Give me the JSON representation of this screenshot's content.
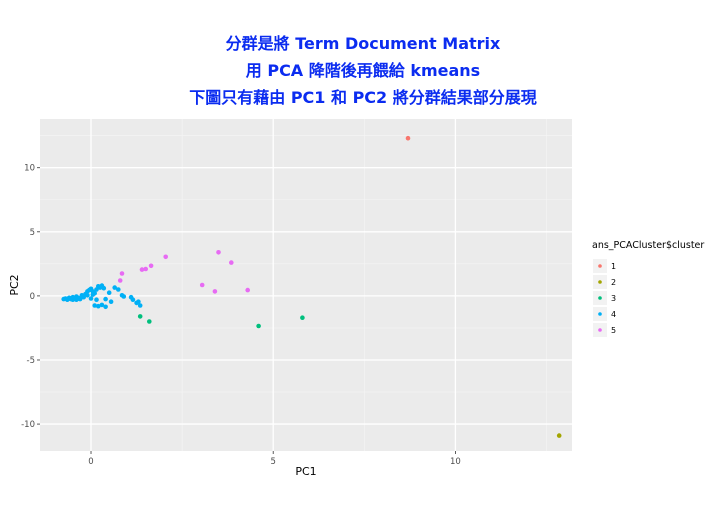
{
  "chart_data": {
    "type": "scatter",
    "title_lines": [
      "分群是將 Term Document Matrix",
      "用 PCA 降階後再餵給 kmeans",
      "下圖只有藉由 PC1 和 PC2 將分群結果部分展現"
    ],
    "xlabel": "PC1",
    "ylabel": "PC2",
    "xlim": [
      -1.4,
      13.2
    ],
    "ylim": [
      -12.1,
      13.8
    ],
    "x_ticks": [
      0,
      5,
      10
    ],
    "y_ticks": [
      -10,
      -5,
      0,
      5,
      10
    ],
    "grid": true,
    "legend": {
      "title": "ans_PCACluster$cluster",
      "placement": "right",
      "entries": [
        "1",
        "2",
        "3",
        "4",
        "5"
      ]
    },
    "colors": {
      "1": "#F8766D",
      "2": "#A3A500",
      "3": "#00BF7D",
      "4": "#00B0F6",
      "5": "#E76BF3"
    },
    "series": [
      {
        "name": "1",
        "points": [
          [
            8.7,
            12.3
          ]
        ]
      },
      {
        "name": "2",
        "points": [
          [
            12.85,
            -10.9
          ]
        ]
      },
      {
        "name": "3",
        "points": [
          [
            1.35,
            -1.6
          ],
          [
            1.6,
            -2.0
          ],
          [
            4.6,
            -2.35
          ],
          [
            5.8,
            -1.7
          ]
        ]
      },
      {
        "name": "4",
        "points": [
          [
            -0.75,
            -0.25
          ],
          [
            -0.7,
            -0.2
          ],
          [
            -0.65,
            -0.3
          ],
          [
            -0.6,
            -0.15
          ],
          [
            -0.55,
            -0.25
          ],
          [
            -0.5,
            -0.3
          ],
          [
            -0.5,
            -0.1
          ],
          [
            -0.45,
            -0.2
          ],
          [
            -0.4,
            -0.3
          ],
          [
            -0.4,
            -0.05
          ],
          [
            -0.35,
            -0.15
          ],
          [
            -0.3,
            -0.25
          ],
          [
            -0.25,
            0.05
          ],
          [
            -0.2,
            -0.1
          ],
          [
            -0.15,
            0.15
          ],
          [
            -0.1,
            0.35
          ],
          [
            -0.05,
            0.45
          ],
          [
            0.0,
            0.55
          ],
          [
            0.05,
            0.35
          ],
          [
            0.1,
            0.2
          ],
          [
            0.15,
            0.5
          ],
          [
            0.2,
            0.75
          ],
          [
            0.25,
            0.65
          ],
          [
            0.3,
            0.8
          ],
          [
            0.35,
            0.6
          ],
          [
            0.1,
            -0.75
          ],
          [
            0.2,
            -0.8
          ],
          [
            0.3,
            -0.7
          ],
          [
            0.4,
            -0.85
          ],
          [
            0.15,
            -0.3
          ],
          [
            0.4,
            -0.25
          ],
          [
            0.5,
            0.25
          ],
          [
            0.55,
            -0.45
          ],
          [
            0.65,
            0.65
          ],
          [
            0.75,
            0.5
          ],
          [
            0.85,
            0.05
          ],
          [
            0.9,
            -0.05
          ],
          [
            1.1,
            -0.1
          ],
          [
            1.15,
            -0.3
          ],
          [
            1.25,
            -0.55
          ],
          [
            1.3,
            -0.45
          ],
          [
            1.35,
            -0.75
          ],
          [
            -0.1,
            0.05
          ],
          [
            0.0,
            -0.2
          ],
          [
            0.05,
            0.1
          ]
        ]
      },
      {
        "name": "5",
        "points": [
          [
            0.8,
            1.2
          ],
          [
            0.85,
            1.75
          ],
          [
            1.4,
            2.05
          ],
          [
            1.5,
            2.1
          ],
          [
            1.65,
            2.35
          ],
          [
            2.05,
            3.05
          ],
          [
            3.05,
            0.85
          ],
          [
            3.4,
            0.35
          ],
          [
            3.5,
            3.4
          ],
          [
            3.85,
            2.6
          ],
          [
            4.3,
            0.45
          ]
        ]
      }
    ]
  }
}
